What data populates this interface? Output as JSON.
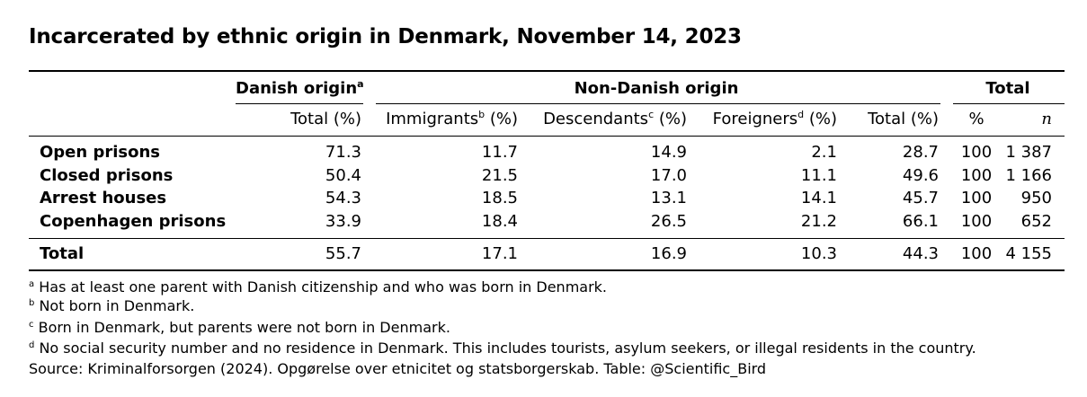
{
  "title": "Incarcerated by ethnic origin in Denmark, November 14, 2023",
  "header": {
    "group_danish": "Danish origin",
    "group_danish_note": "a",
    "group_non_danish": "Non-Danish origin",
    "group_total": "Total",
    "col_danish_total": "Total (%)",
    "col_immigrants": "Immigrants",
    "col_immigrants_note": "b",
    "col_descendants": "Descendants",
    "col_descendants_note": "c",
    "col_foreigners": "Foreigners",
    "col_foreigners_note": "d",
    "pct_suffix": " (%)",
    "col_non_danish_total": "Total (%)",
    "col_pct": "%",
    "col_n": "n"
  },
  "rows": [
    {
      "label": "Open prisons",
      "danish": "71.3",
      "immigrants": "11.7",
      "descendants": "14.9",
      "foreigners": "2.1",
      "nd_total": "28.7",
      "pct": "100",
      "n": "1 387"
    },
    {
      "label": "Closed prisons",
      "danish": "50.4",
      "immigrants": "21.5",
      "descendants": "17.0",
      "foreigners": "11.1",
      "nd_total": "49.6",
      "pct": "100",
      "n": "1 166"
    },
    {
      "label": "Arrest houses",
      "danish": "54.3",
      "immigrants": "18.5",
      "descendants": "13.1",
      "foreigners": "14.1",
      "nd_total": "45.7",
      "pct": "100",
      "n": "950"
    },
    {
      "label": "Copenhagen prisons",
      "danish": "33.9",
      "immigrants": "18.4",
      "descendants": "26.5",
      "foreigners": "21.2",
      "nd_total": "66.1",
      "pct": "100",
      "n": "652"
    }
  ],
  "total_row": {
    "label": "Total",
    "danish": "55.7",
    "immigrants": "17.1",
    "descendants": "16.9",
    "foreigners": "10.3",
    "nd_total": "44.3",
    "pct": "100",
    "n": "4 155"
  },
  "footnotes": [
    {
      "mark": "a",
      "text": "Has at least one parent with Danish citizenship and who was born in Denmark."
    },
    {
      "mark": "b",
      "text": "Not born in Denmark."
    },
    {
      "mark": "c",
      "text": "Born in Denmark, but parents were not born in Denmark."
    },
    {
      "mark": "d",
      "text": "No social security number and no residence in Denmark. This includes tourists, asylum seekers, or illegal residents in the country."
    }
  ],
  "source": "Source: Kriminalforsorgen (2024). Opgørelse over etnicitet og statsborgerskab. Table: @Scientific_Bird"
}
